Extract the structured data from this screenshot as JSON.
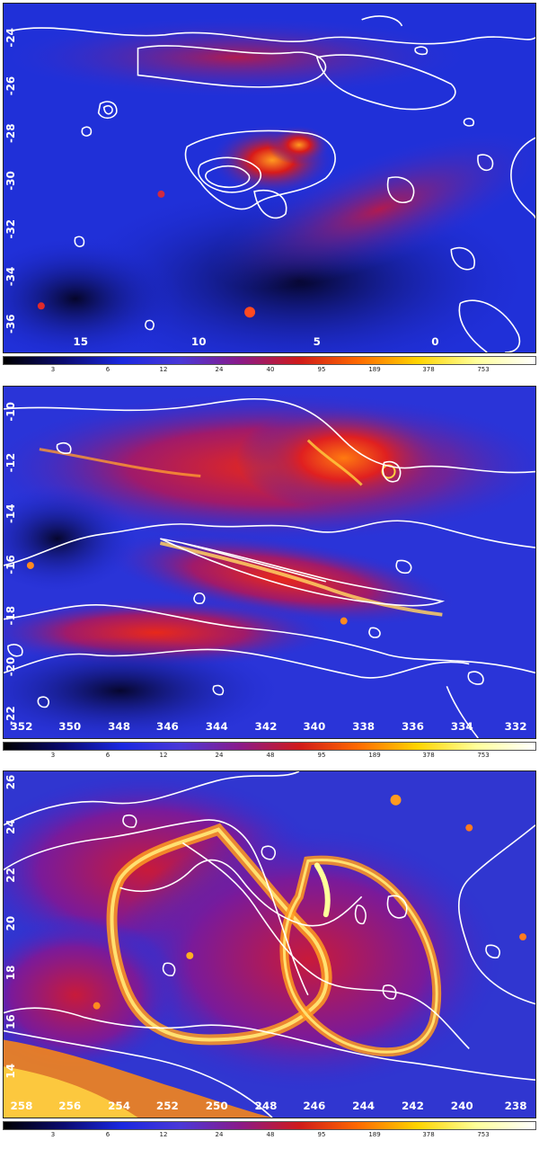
{
  "panels": [
    {
      "id": "top",
      "y_ticks": [
        "-24",
        "-26",
        "-28",
        "-30",
        "-32",
        "-34",
        "-36"
      ],
      "x_ticks": [
        "15",
        "10",
        "5",
        "0"
      ]
    },
    {
      "id": "middle",
      "y_ticks": [
        "-10",
        "-12",
        "-14",
        "-16",
        "-18",
        "-20",
        "-22"
      ],
      "x_ticks": [
        "352",
        "350",
        "348",
        "346",
        "344",
        "342",
        "340",
        "338",
        "336",
        "334",
        "332"
      ]
    },
    {
      "id": "bottom",
      "y_ticks": [
        "26",
        "24",
        "22",
        "20",
        "18",
        "16",
        "14"
      ],
      "x_ticks": [
        "258",
        "256",
        "254",
        "252",
        "250",
        "248",
        "246",
        "244",
        "242",
        "240",
        "238"
      ]
    }
  ],
  "colorbars": [
    {
      "ticks": [
        "3",
        "6",
        "12",
        "24",
        "40",
        "95",
        "189",
        "378",
        "753"
      ]
    },
    {
      "ticks": [
        "3",
        "6",
        "12",
        "24",
        "48",
        "95",
        "189",
        "378",
        "753"
      ]
    },
    {
      "ticks": [
        "3",
        "6",
        "12",
        "24",
        "48",
        "95",
        "189",
        "378",
        "753"
      ]
    }
  ],
  "colormap": [
    "#000000",
    "#0a0a6e",
    "#1a28e0",
    "#4a38d8",
    "#8a1a8a",
    "#d01a1a",
    "#ff6a00",
    "#ffd400",
    "#ffff9a",
    "#ffffff"
  ]
}
